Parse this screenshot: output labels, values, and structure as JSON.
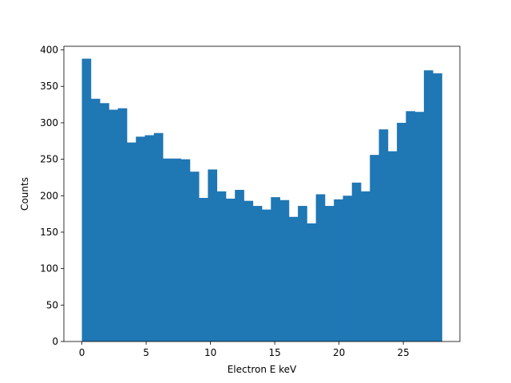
{
  "chart_data": {
    "type": "bar",
    "xlabel": "Electron E keV",
    "ylabel": "Counts",
    "xlim": [
      -1.4,
      29.4
    ],
    "ylim": [
      0,
      405
    ],
    "grid": false,
    "bar_color": "#1f77b4",
    "bin_start": 0,
    "bin_width": 0.7,
    "values": [
      388,
      333,
      327,
      318,
      320,
      273,
      281,
      283,
      286,
      251,
      251,
      250,
      233,
      197,
      236,
      206,
      196,
      208,
      193,
      186,
      181,
      198,
      194,
      171,
      186,
      162,
      202,
      186,
      195,
      200,
      218,
      206,
      256,
      291,
      261,
      300,
      316,
      315,
      372,
      368
    ],
    "x_ticks": [
      {
        "value": 0,
        "label": "0"
      },
      {
        "value": 5,
        "label": "5"
      },
      {
        "value": 10,
        "label": "10"
      },
      {
        "value": 15,
        "label": "15"
      },
      {
        "value": 20,
        "label": "20"
      },
      {
        "value": 25,
        "label": "25"
      }
    ],
    "y_ticks": [
      {
        "value": 0,
        "label": "0"
      },
      {
        "value": 50,
        "label": "50"
      },
      {
        "value": 100,
        "label": "100"
      },
      {
        "value": 150,
        "label": "150"
      },
      {
        "value": 200,
        "label": "200"
      },
      {
        "value": 250,
        "label": "250"
      },
      {
        "value": 300,
        "label": "300"
      },
      {
        "value": 350,
        "label": "350"
      },
      {
        "value": 400,
        "label": "400"
      }
    ]
  }
}
